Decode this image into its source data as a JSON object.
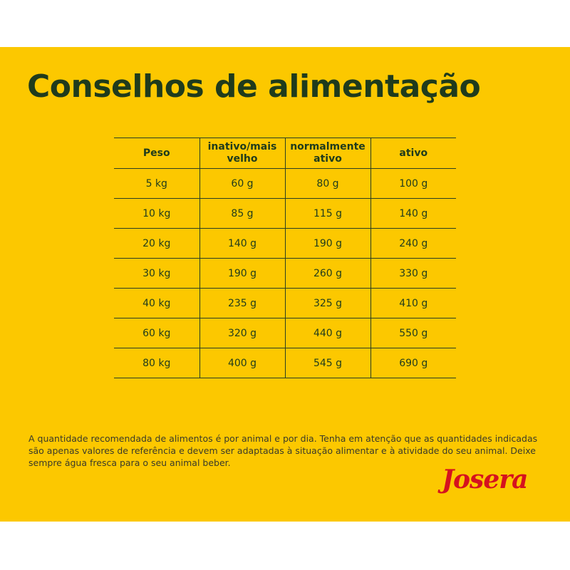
{
  "header": {
    "title": "Conselhos de alimentação"
  },
  "table": {
    "columns": [
      "Peso",
      "inativo/mais velho",
      "normalmente ativo",
      "ativo"
    ],
    "rows": [
      [
        "5 kg",
        "60 g",
        "80 g",
        "100 g"
      ],
      [
        "10 kg",
        "85 g",
        "115 g",
        "140 g"
      ],
      [
        "20 kg",
        "140 g",
        "190 g",
        "240 g"
      ],
      [
        "30 kg",
        "190 g",
        "260 g",
        "330 g"
      ],
      [
        "40 kg",
        "235 g",
        "325 g",
        "410 g"
      ],
      [
        "60 kg",
        "320 g",
        "440 g",
        "550 g"
      ],
      [
        "80 kg",
        "400 g",
        "545 g",
        "690 g"
      ]
    ]
  },
  "footer": {
    "note": "A quantidade recomendada de alimentos é por animal e por dia. Tenha em atenção que as quantidades indicadas são apenas valores de referência e devem ser adaptadas à situação alimentar e à atividade do seu animal. Deixe sempre água fresca para o seu animal beber.",
    "logo": "Josera"
  }
}
